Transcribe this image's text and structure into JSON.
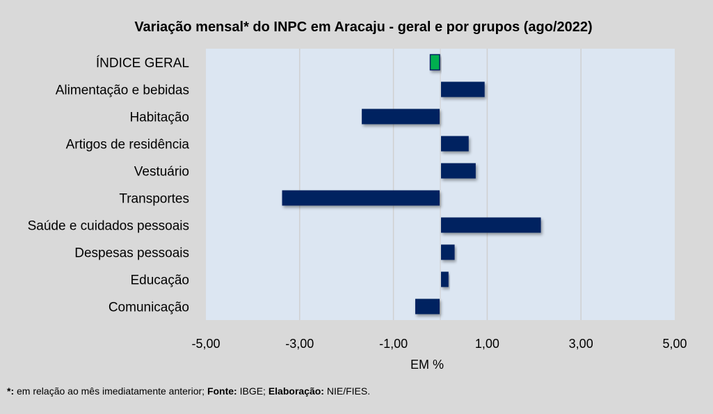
{
  "chart_data": {
    "type": "bar",
    "orientation": "horizontal",
    "title": "Variação  mensal*  do INPC em Aracaju  - geral e por grupos (ago/2022)",
    "xlabel": "EM %",
    "ylabel": "",
    "xlim": [
      -5,
      5
    ],
    "xticks": [
      -5,
      -3,
      -1,
      1,
      3,
      5
    ],
    "xtick_labels": [
      "-5,00",
      "-3,00",
      "-1,00",
      "1,00",
      "3,00",
      "5,00"
    ],
    "grid": true,
    "categories": [
      "ÍNDICE GERAL",
      "Alimentação e bebidas",
      "Habitação",
      "Artigos de residência",
      "Vestuário",
      "Transportes",
      "Saúde e cuidados pessoais",
      "Despesas pessoais",
      "Educação",
      "Comunicação"
    ],
    "values": [
      -0.2,
      0.93,
      -1.66,
      0.59,
      0.74,
      -3.36,
      2.13,
      0.29,
      0.16,
      -0.52
    ],
    "colors": {
      "highlight": "#00b050",
      "bar": "#002060",
      "plot_bg": "#dce6f2",
      "grid": "#d0d0d0"
    }
  },
  "footnote": {
    "star_label": "*:",
    "star_text": " em relação ao mês imediatamente  anterior; ",
    "source_label": "Fonte:",
    "source_text": " IBGE; ",
    "elab_label": "Elaboração:",
    "elab_text": " NIE/FIES."
  }
}
